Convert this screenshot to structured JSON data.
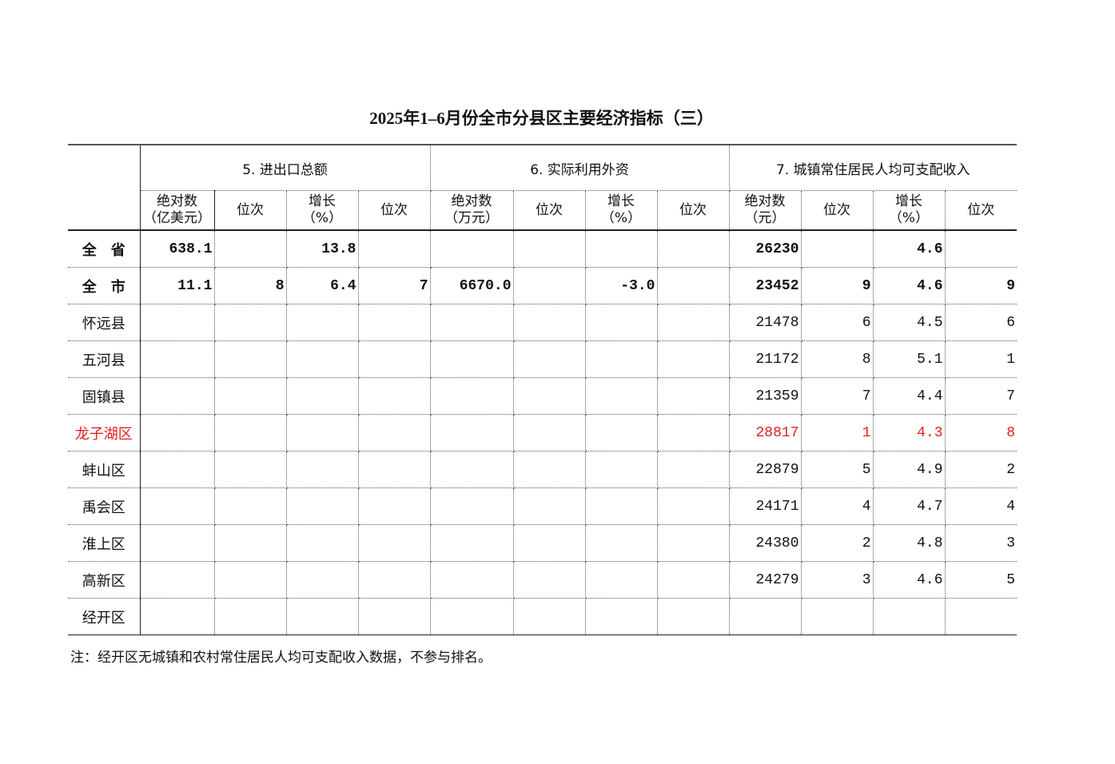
{
  "title": "2025年1–6月份全市分县区主要经济指标（三）",
  "groups": [
    "5. 进出口总额",
    "6. 实际利用外资",
    "7. 城镇常住居民人均可支配收入"
  ],
  "subheaders": [
    [
      "绝对数",
      "（亿美元）"
    ],
    [
      "位次",
      ""
    ],
    [
      "增长",
      "（%）"
    ],
    [
      "位次",
      ""
    ],
    [
      "绝对数",
      "（万元）"
    ],
    [
      "位次",
      ""
    ],
    [
      "增长",
      "（%）"
    ],
    [
      "位次",
      ""
    ],
    [
      "绝对数",
      "（元）"
    ],
    [
      "位次",
      ""
    ],
    [
      "增长",
      "（%）"
    ],
    [
      "位次",
      ""
    ]
  ],
  "rows": [
    {
      "name": "全　省",
      "bold": true,
      "red": false,
      "cells": [
        "638.1",
        "",
        "13.8",
        "",
        "",
        "",
        "",
        "",
        "26230",
        "",
        "4.6",
        ""
      ]
    },
    {
      "name": "全　市",
      "bold": true,
      "red": false,
      "cells": [
        "11.1",
        "8",
        "6.4",
        "7",
        "6670.0",
        "",
        "-3.0",
        "",
        "23452",
        "9",
        "4.6",
        "9"
      ]
    },
    {
      "name": "怀远县",
      "bold": false,
      "red": false,
      "cells": [
        "",
        "",
        "",
        "",
        "",
        "",
        "",
        "",
        "21478",
        "6",
        "4.5",
        "6"
      ]
    },
    {
      "name": "五河县",
      "bold": false,
      "red": false,
      "cells": [
        "",
        "",
        "",
        "",
        "",
        "",
        "",
        "",
        "21172",
        "8",
        "5.1",
        "1"
      ]
    },
    {
      "name": "固镇县",
      "bold": false,
      "red": false,
      "cells": [
        "",
        "",
        "",
        "",
        "",
        "",
        "",
        "",
        "21359",
        "7",
        "4.4",
        "7"
      ]
    },
    {
      "name": "龙子湖区",
      "bold": false,
      "red": true,
      "cells": [
        "",
        "",
        "",
        "",
        "",
        "",
        "",
        "",
        "28817",
        "1",
        "4.3",
        "8"
      ]
    },
    {
      "name": "蚌山区",
      "bold": false,
      "red": false,
      "cells": [
        "",
        "",
        "",
        "",
        "",
        "",
        "",
        "",
        "22879",
        "5",
        "4.9",
        "2"
      ]
    },
    {
      "name": "禹会区",
      "bold": false,
      "red": false,
      "cells": [
        "",
        "",
        "",
        "",
        "",
        "",
        "",
        "",
        "24171",
        "4",
        "4.7",
        "4"
      ]
    },
    {
      "name": "淮上区",
      "bold": false,
      "red": false,
      "cells": [
        "",
        "",
        "",
        "",
        "",
        "",
        "",
        "",
        "24380",
        "2",
        "4.8",
        "3"
      ]
    },
    {
      "name": "高新区",
      "bold": false,
      "red": false,
      "cells": [
        "",
        "",
        "",
        "",
        "",
        "",
        "",
        "",
        "24279",
        "3",
        "4.6",
        "5"
      ]
    },
    {
      "name": "经开区",
      "bold": false,
      "red": false,
      "cells": [
        "",
        "",
        "",
        "",
        "",
        "",
        "",
        "",
        "",
        "",
        "",
        ""
      ]
    }
  ],
  "note": "注：经开区无城镇和农村常住居民人均可支配收入数据，不参与排名。",
  "colors": {
    "highlight": "#e02020"
  }
}
